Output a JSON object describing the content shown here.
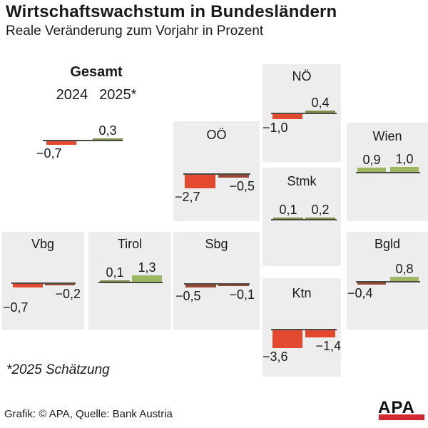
{
  "header": {
    "title": "Wirtschaftswachstum in Bundesländern",
    "subtitle": "Reale Veränderung zum Vorjahr in Prozent"
  },
  "footnote": "*2025 Schätzung",
  "footer": {
    "credit": "Grafik: © APA, Quelle: Bank Austria",
    "logo_text": "APA"
  },
  "colors": {
    "negative_bar": "#e2492e",
    "negative_bar_thin": "#9a4433",
    "positive_bar": "#9cb863",
    "positive_bar_thin": "#7e914c",
    "baseline": "#4c4c44",
    "panel_bg": "#ededed",
    "text": "#1a1a1a",
    "logo_red": "#d22730",
    "logo_black": "#111111"
  },
  "chart_data": {
    "type": "bar",
    "title": "Wirtschaftswachstum in Bundesländern",
    "subtitle": "Reale Veränderung zum Vorjahr in Prozent",
    "unit": "percent, real change vs. previous year",
    "series_labels": [
      "2024",
      "2025*"
    ],
    "footnote": "*2025 Schätzung",
    "source": "Grafik: © APA, Quelle: Bank Austria",
    "ylim": [
      -4,
      1.5
    ],
    "regions": [
      {
        "id": "gesamt",
        "label": "Gesamt",
        "values": {
          "y2024": -0.7,
          "y2025": 0.3
        },
        "display": {
          "y2024": "−0,7",
          "y2025": "0,3"
        }
      },
      {
        "id": "noe",
        "label": "NÖ",
        "values": {
          "y2024": -1.0,
          "y2025": 0.4
        },
        "display": {
          "y2024": "−1,0",
          "y2025": "0,4"
        }
      },
      {
        "id": "ooe",
        "label": "OÖ",
        "values": {
          "y2024": -2.7,
          "y2025": -0.5
        },
        "display": {
          "y2024": "−2,7",
          "y2025": "−0,5"
        }
      },
      {
        "id": "wien",
        "label": "Wien",
        "values": {
          "y2024": 0.9,
          "y2025": 1.0
        },
        "display": {
          "y2024": "0,9",
          "y2025": "1,0"
        }
      },
      {
        "id": "stmk",
        "label": "Stmk",
        "values": {
          "y2024": 0.1,
          "y2025": 0.2
        },
        "display": {
          "y2024": "0,1",
          "y2025": "0,2"
        }
      },
      {
        "id": "vbg",
        "label": "Vbg",
        "values": {
          "y2024": -0.7,
          "y2025": -0.2
        },
        "display": {
          "y2024": "−0,7",
          "y2025": "−0,2"
        }
      },
      {
        "id": "tirol",
        "label": "Tirol",
        "values": {
          "y2024": 0.1,
          "y2025": 1.3
        },
        "display": {
          "y2024": "0,1",
          "y2025": "1,3"
        }
      },
      {
        "id": "sbg",
        "label": "Sbg",
        "values": {
          "y2024": -0.5,
          "y2025": -0.1
        },
        "display": {
          "y2024": "−0,5",
          "y2025": "−0,1"
        }
      },
      {
        "id": "ktn",
        "label": "Ktn",
        "values": {
          "y2024": -3.6,
          "y2025": -1.4
        },
        "display": {
          "y2024": "−3,6",
          "y2025": "−1,4"
        }
      },
      {
        "id": "bgld",
        "label": "Bgld",
        "values": {
          "y2024": -0.4,
          "y2025": 0.8
        },
        "display": {
          "y2024": "−0,4",
          "y2025": "0,8"
        }
      }
    ]
  }
}
